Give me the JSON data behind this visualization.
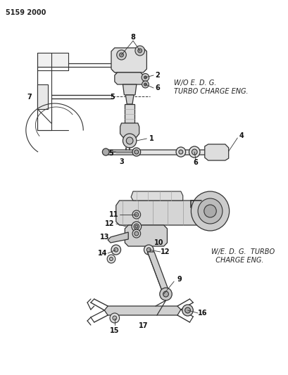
{
  "title": "5159 2000",
  "background_color": "#ffffff",
  "line_color": "#333333",
  "top_label1": "W/O E. D. G.",
  "top_label2": "TURBO CHARGE ENG.",
  "bottom_label1": "W/E. D. G.  TURBO",
  "bottom_label2": "  CHARGE ENG.",
  "fig_width": 4.1,
  "fig_height": 5.33,
  "dpi": 100
}
